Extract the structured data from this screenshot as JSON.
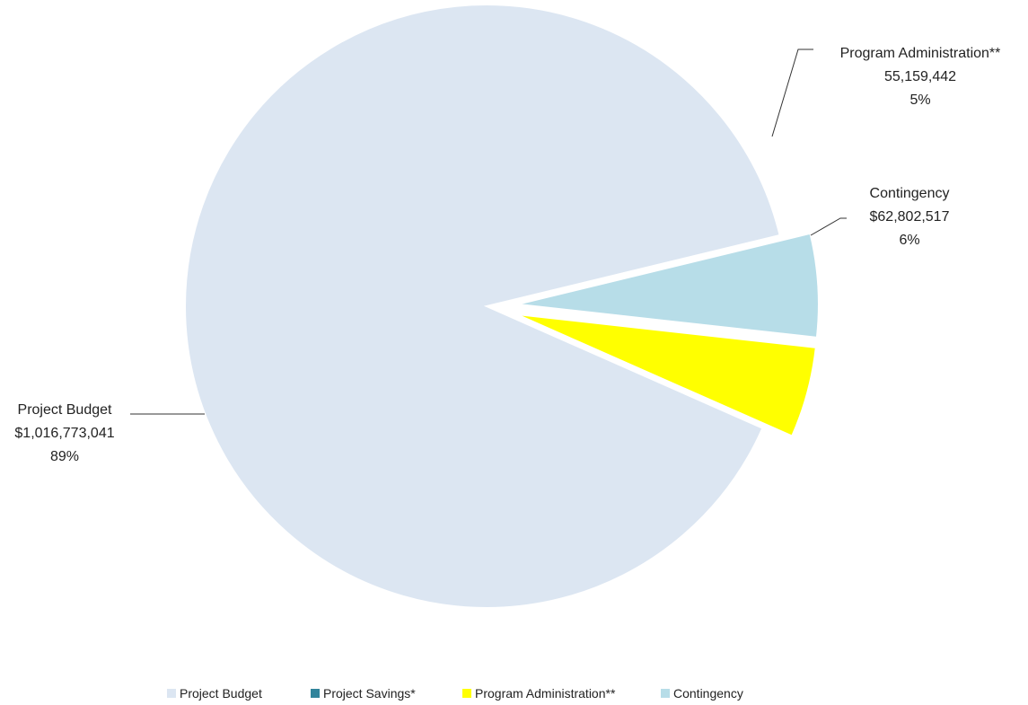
{
  "chart_data": {
    "type": "pie",
    "title": "",
    "categories": [
      "Project Budget",
      "Project Savings*",
      "Program Administration**",
      "Contingency"
    ],
    "values": [
      1016773041,
      0,
      55159442,
      62802517
    ],
    "value_labels": [
      "$1,016,773,041",
      "",
      "55,159,442",
      "$62,802,517"
    ],
    "percent_labels": [
      "89%",
      "",
      "5%",
      "6%"
    ],
    "colors": [
      "#dce6f2",
      "#31849b",
      "#ffff00",
      "#b7dde8"
    ],
    "exploded": [
      "Program Administration**",
      "Contingency"
    ],
    "legend_position": "bottom"
  }
}
